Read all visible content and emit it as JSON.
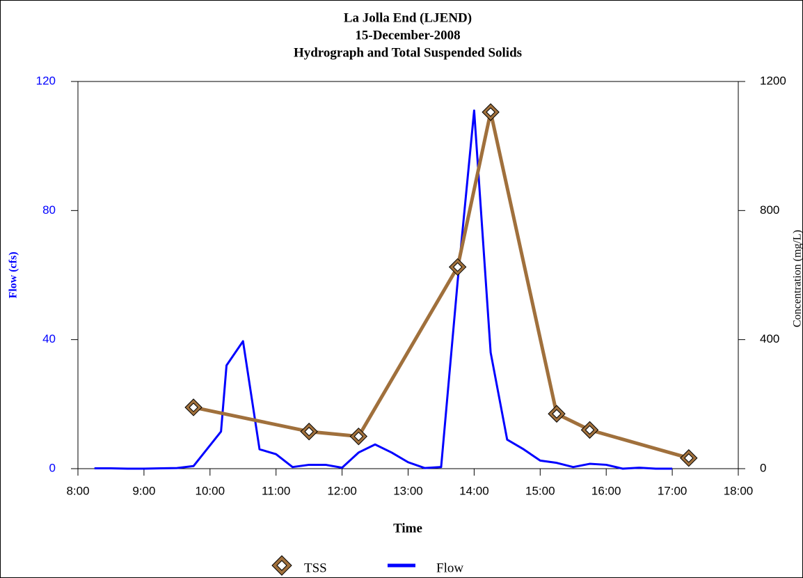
{
  "chart_data": {
    "type": "line",
    "title": "La Jolla End (LJEND)",
    "subtitle": "15-December-2008",
    "subtitle2": "Hydrograph and Total Suspended Solids",
    "x_label": "Time",
    "y_label": "Flow (cfs)",
    "y2_label": "Concentration (mg/L)",
    "xlim": [
      8,
      18
    ],
    "xticks": [
      {
        "value": 8,
        "label": "8:00"
      },
      {
        "value": 9,
        "label": "9:00"
      },
      {
        "value": 10,
        "label": "10:00"
      },
      {
        "value": 11,
        "label": "11:00"
      },
      {
        "value": 12,
        "label": "12:00"
      },
      {
        "value": 13,
        "label": "13:00"
      },
      {
        "value": 14,
        "label": "14:00"
      },
      {
        "value": 15,
        "label": "15:00"
      },
      {
        "value": 16,
        "label": "16:00"
      },
      {
        "value": 17,
        "label": "17:00"
      },
      {
        "value": 18,
        "label": "18:00"
      }
    ],
    "ylim": [
      0,
      120
    ],
    "yticks": [
      0,
      40,
      80,
      120
    ],
    "y2lim": [
      0,
      1200
    ],
    "y2ticks": [
      0,
      400,
      800,
      1200
    ],
    "series": [
      {
        "name": "TSS",
        "color": "#a0703c",
        "axis": "y2",
        "marker": "diamond",
        "x": [
          9.75,
          11.5,
          12.25,
          13.75,
          14.25,
          15.25,
          15.75,
          17.25
        ],
        "values": [
          190,
          115,
          100,
          625,
          1105,
          170,
          120,
          33
        ]
      },
      {
        "name": "Flow",
        "color": "#0000ff",
        "axis": "y",
        "x": [
          8.25,
          8.5,
          8.75,
          9,
          9.25,
          9.5,
          9.75,
          10.1667,
          10.25,
          10.5,
          10.75,
          11,
          11.25,
          11.5,
          11.75,
          12,
          12.25,
          12.5,
          12.75,
          13,
          13.25,
          13.5,
          13.75,
          14,
          14.25,
          14.5,
          14.75,
          15,
          15.25,
          15.5,
          15.75,
          16,
          16.25,
          16.5,
          16.75,
          17
        ],
        "values": [
          0.1,
          0.1,
          0,
          0,
          0.1,
          0.2,
          0.8,
          11.5,
          32,
          39.5,
          6,
          4.5,
          0.5,
          1.2,
          1.2,
          0.3,
          5,
          7.5,
          5,
          2,
          0.2,
          0.5,
          58,
          111,
          36,
          9,
          6,
          2.5,
          1.8,
          0.5,
          1.5,
          1.2,
          0,
          0.3,
          0,
          0
        ]
      }
    ]
  }
}
